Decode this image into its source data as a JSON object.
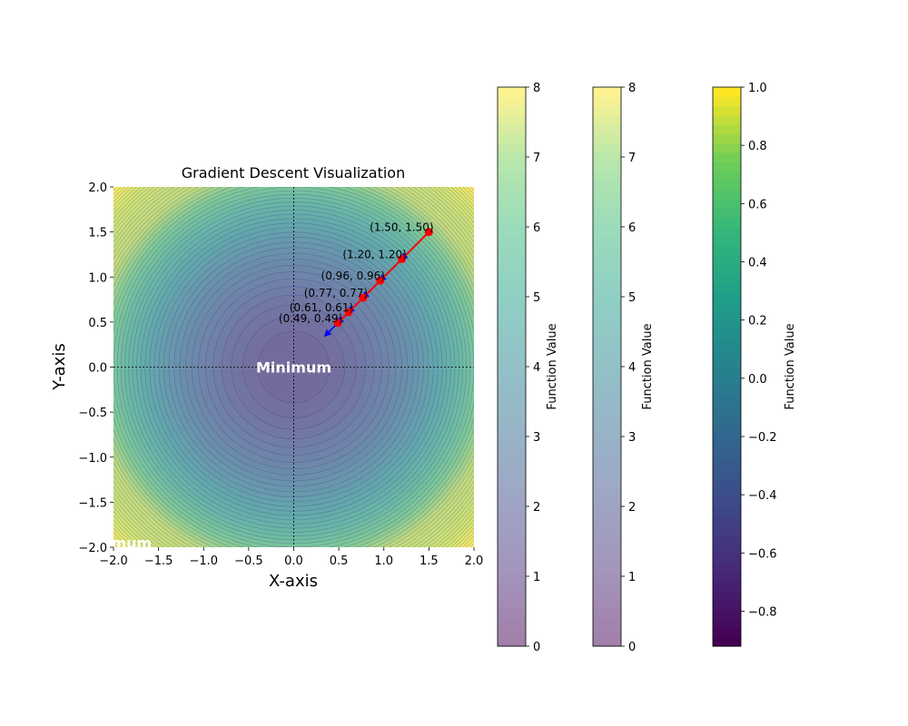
{
  "chart_data": {
    "type": "contour",
    "title": "Gradient Descent Visualization",
    "xlabel": "X-axis",
    "ylabel": "Y-axis",
    "xlim": [
      -2,
      2
    ],
    "ylim": [
      -2,
      2
    ],
    "x_ticks": [
      "−2.0",
      "−1.5",
      "−1.0",
      "−0.5",
      "0.0",
      "0.5",
      "1.0",
      "1.5",
      "2.0"
    ],
    "y_ticks": [
      "−2.0",
      "−1.5",
      "−1.0",
      "−0.5",
      "0.0",
      "0.5",
      "1.0",
      "1.5",
      "2.0"
    ],
    "x_tick_values": [
      -2,
      -1.5,
      -1,
      -0.5,
      0,
      0.5,
      1,
      1.5,
      2
    ],
    "y_tick_values": [
      -2,
      -1.5,
      -1,
      -0.5,
      0,
      0.5,
      1,
      1.5,
      2
    ],
    "contour_function_max": 8,
    "path": {
      "x": [
        1.5,
        1.2,
        0.96,
        0.77,
        0.61,
        0.49
      ],
      "y": [
        1.5,
        1.2,
        0.96,
        0.77,
        0.61,
        0.49
      ],
      "labels": [
        "(1.50, 1.50)",
        "(1.20, 1.20)",
        "(0.96, 0.96)",
        "(0.77, 0.77)",
        "(0.61, 0.61)",
        "(0.49, 0.49)"
      ],
      "color": "#ff0000"
    },
    "arrows": [
      {
        "x": 1.5,
        "y": 1.5,
        "x2": 1.2,
        "y2": 1.2
      },
      {
        "x": 1.2,
        "y": 1.2,
        "x2": 0.96,
        "y2": 0.96
      },
      {
        "x": 0.96,
        "y": 0.96,
        "x2": 0.77,
        "y2": 0.77
      },
      {
        "x": 0.77,
        "y": 0.77,
        "x2": 0.61,
        "y2": 0.61
      },
      {
        "x": 0.61,
        "y": 0.61,
        "x2": 0.49,
        "y2": 0.49
      },
      {
        "x": 0.49,
        "y": 0.49,
        "x2": 0.35,
        "y2": 0.35
      }
    ],
    "arrow_color": "#0000ff",
    "annotations": [
      {
        "text": "Minimum",
        "x": 0,
        "y": 0
      },
      {
        "text": "mum",
        "x": -1.8,
        "y": -1.95
      }
    ],
    "colorbars": [
      {
        "label": "Function Value",
        "ticks": [
          "0",
          "1",
          "2",
          "3",
          "4",
          "5",
          "6",
          "7",
          "8"
        ],
        "range": [
          0,
          8
        ],
        "alpha": 0.5
      },
      {
        "label": "Function Value",
        "ticks": [
          "0",
          "1",
          "2",
          "3",
          "4",
          "5",
          "6",
          "7",
          "8"
        ],
        "range": [
          0,
          8
        ],
        "alpha": 0.5
      },
      {
        "label": "Function Value",
        "ticks": [
          "−0.8",
          "−0.6",
          "−0.4",
          "−0.2",
          "0.0",
          "0.2",
          "0.4",
          "0.6",
          "0.8",
          "1.0"
        ],
        "range": [
          -0.92,
          1.0
        ],
        "alpha": 1
      }
    ]
  }
}
